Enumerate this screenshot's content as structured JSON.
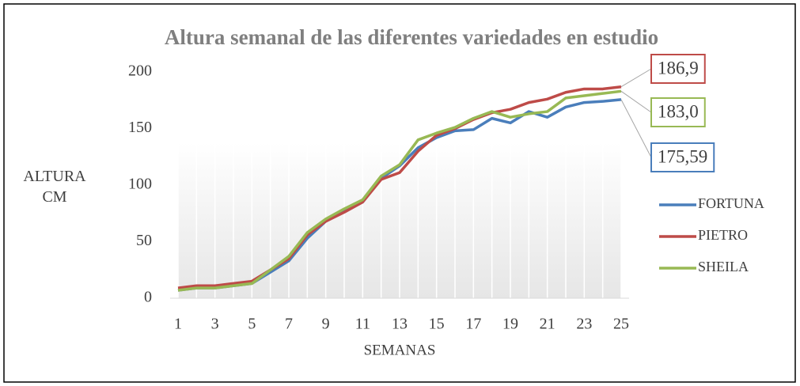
{
  "chart_data": {
    "type": "line",
    "title": "Altura semanal de las diferentes variedades en estudio",
    "x_label": "SEMANAS",
    "y_label": "ALTURA CM",
    "x": [
      1,
      2,
      3,
      4,
      5,
      6,
      7,
      8,
      9,
      10,
      11,
      12,
      13,
      14,
      15,
      16,
      17,
      18,
      19,
      20,
      21,
      22,
      23,
      24,
      25
    ],
    "xlim": [
      1,
      25
    ],
    "xticks": [
      1,
      3,
      5,
      7,
      9,
      11,
      13,
      15,
      17,
      19,
      21,
      23,
      25
    ],
    "ylim": [
      0,
      200
    ],
    "yticks": [
      0,
      50,
      100,
      150,
      200
    ],
    "series": [
      {
        "name": "FORTUNA",
        "color": "#4a7ebb",
        "values": [
          7,
          9,
          9,
          11,
          13,
          23,
          33,
          53,
          68,
          77,
          85,
          106,
          117,
          133,
          142,
          148,
          149,
          159,
          155,
          165,
          160,
          169,
          173,
          174,
          175.59
        ],
        "value_labels": [
          null,
          null,
          null,
          null,
          null,
          null,
          null,
          null,
          null,
          null,
          null,
          null,
          null,
          null,
          null,
          null,
          null,
          null,
          null,
          null,
          null,
          null,
          null,
          null,
          "175,59"
        ]
      },
      {
        "name": "PIETRO",
        "color": "#be4b48",
        "values": [
          9,
          11,
          11,
          13,
          15,
          25,
          35,
          56,
          68,
          76,
          85,
          105,
          111,
          130,
          144,
          150,
          158,
          164,
          167,
          173,
          176,
          182,
          185,
          185,
          186.9
        ],
        "value_labels": [
          null,
          null,
          null,
          null,
          null,
          null,
          null,
          null,
          null,
          null,
          null,
          null,
          null,
          null,
          null,
          null,
          null,
          null,
          null,
          null,
          null,
          null,
          null,
          null,
          "186,9"
        ]
      },
      {
        "name": "SHEILA",
        "color": "#98b954",
        "values": [
          7,
          9,
          9,
          11,
          13,
          25,
          37,
          58,
          70,
          79,
          87,
          108,
          118,
          140,
          146,
          151,
          159,
          165,
          160,
          163,
          165,
          177,
          179,
          181,
          183.0
        ],
        "value_labels": [
          null,
          null,
          null,
          null,
          null,
          null,
          null,
          null,
          null,
          null,
          null,
          null,
          null,
          null,
          null,
          null,
          null,
          null,
          null,
          null,
          null,
          null,
          null,
          null,
          "183,0"
        ]
      }
    ]
  }
}
